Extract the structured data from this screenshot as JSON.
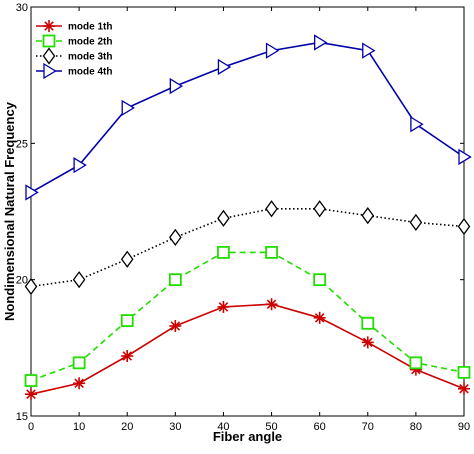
{
  "chart_data": {
    "type": "line",
    "xlabel": "Fiber angle",
    "ylabel": "Nondimensional Natural Frequency",
    "xlim": [
      0,
      90
    ],
    "ylim": [
      15,
      30
    ],
    "x": [
      0,
      10,
      20,
      30,
      40,
      50,
      60,
      70,
      80,
      90
    ],
    "xticks": [
      "0",
      "10",
      "20",
      "30",
      "40",
      "50",
      "60",
      "70",
      "80",
      "90"
    ],
    "yticks": [
      "15",
      "20",
      "25",
      "30"
    ],
    "grid": false,
    "legend_position": "top-left",
    "series": [
      {
        "name": "mode 1th",
        "color": "#cc0000",
        "marker": "asterisk",
        "line_style": "solid",
        "values": [
          15.8,
          16.2,
          17.2,
          18.3,
          19.0,
          19.1,
          18.6,
          17.7,
          16.7,
          16.0
        ]
      },
      {
        "name": "mode 2th",
        "color": "#22dd00",
        "marker": "square",
        "line_style": "dashed",
        "values": [
          16.3,
          16.95,
          18.5,
          20.0,
          21.0,
          21.0,
          20.0,
          18.4,
          16.95,
          16.6
        ]
      },
      {
        "name": "mode 3th",
        "color": "#000000",
        "marker": "diamond",
        "line_style": "dotted",
        "values": [
          19.75,
          20.0,
          20.75,
          21.55,
          22.25,
          22.6,
          22.6,
          22.35,
          22.1,
          21.95
        ]
      },
      {
        "name": "mode 4th",
        "color": "#0000aa",
        "marker": "triangle-right",
        "line_style": "solid",
        "values": [
          23.2,
          24.2,
          26.3,
          27.1,
          27.8,
          28.4,
          28.7,
          28.4,
          25.7,
          24.5
        ]
      }
    ]
  }
}
